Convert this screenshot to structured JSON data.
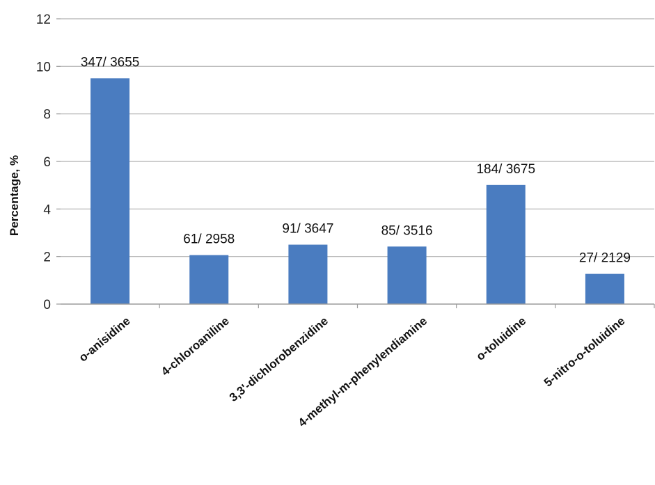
{
  "chart_data": {
    "type": "bar",
    "title": "",
    "xlabel": "",
    "ylabel": "Percentage, %",
    "ylim": [
      0,
      12
    ],
    "yticks": [
      0,
      2,
      4,
      6,
      8,
      10,
      12
    ],
    "grid": "horizontal",
    "legend": "none",
    "bar_color": "#4a7cc0",
    "categories": [
      "o-anisidine",
      "4-chloroaniline",
      "3,3'-dichlorobenzidine",
      "4-methyl-m-phenylendiamine",
      "o-toluidine",
      "5-nitro-o-toluidine"
    ],
    "values": [
      9.5,
      2.06,
      2.5,
      2.42,
      5.01,
      1.27
    ],
    "data_labels": [
      "347/ 3655",
      "61/ 2958",
      "91/ 3647",
      "85/ 3516",
      "184/ 3675",
      "27/ 2129"
    ]
  }
}
